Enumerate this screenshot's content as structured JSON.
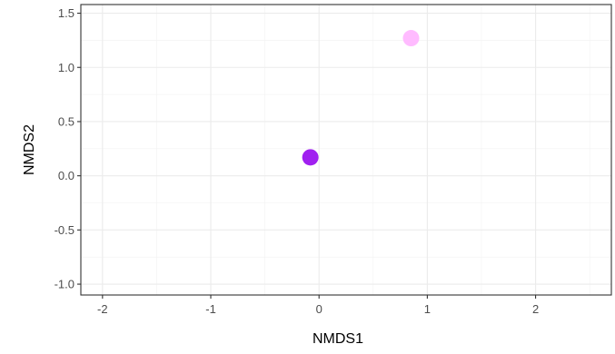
{
  "chart_data": {
    "type": "scatter",
    "title": "",
    "xlabel": "NMDS1",
    "ylabel": "NMDS2",
    "xlim": [
      -2.2,
      2.7
    ],
    "ylim": [
      -1.1,
      1.58
    ],
    "x_ticks": [
      -2,
      -1,
      0,
      1,
      2
    ],
    "x_tick_labels": [
      "-2",
      "-1",
      "0",
      "1",
      "2"
    ],
    "y_ticks": [
      -1.0,
      -0.5,
      0.0,
      0.5,
      1.0,
      1.5
    ],
    "y_tick_labels": [
      "-1.0",
      "-0.5",
      "0.0",
      "0.5",
      "1.0",
      "1.5"
    ],
    "grid": true,
    "legend": "none",
    "points": [
      {
        "x": -0.08,
        "y": 0.17,
        "color": "#a020f0"
      },
      {
        "x": 0.85,
        "y": 1.27,
        "color": "#ffbbff"
      }
    ]
  }
}
